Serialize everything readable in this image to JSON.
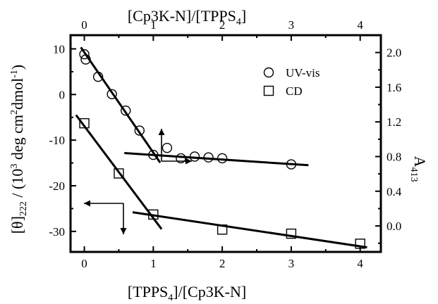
{
  "chart_data": {
    "type": "scatter",
    "x_bottom": {
      "label_parts": [
        "[TPPS",
        "4",
        "]/[Cp3K-N]"
      ],
      "range": [
        -0.2,
        4.3
      ],
      "ticks": [
        0,
        1,
        2,
        3,
        4
      ]
    },
    "x_top": {
      "label_parts": [
        "[Cp3K-N]/[TPPS",
        "4",
        "]"
      ],
      "ticks": [
        "0",
        "1",
        "2",
        "3",
        "4"
      ]
    },
    "y_left": {
      "label_parts": [
        "[θ]",
        "222",
        " / (10",
        "3",
        " deg cm",
        "2",
        "dmol",
        "-1",
        ")"
      ],
      "range": [
        -34.5,
        13
      ],
      "ticks": [
        10,
        0,
        -10,
        -20,
        -30
      ]
    },
    "y_right": {
      "label_parts": [
        "A",
        "413"
      ],
      "range": [
        -0.3,
        2.2
      ],
      "ticks": [
        "2.0",
        "1.6",
        "1.2",
        "0.8",
        "0.4",
        "0.0"
      ]
    },
    "legend": {
      "position": "top-right",
      "items": [
        {
          "name": "UV-vis",
          "marker": "circle"
        },
        {
          "name": "CD",
          "marker": "square"
        }
      ]
    },
    "series": [
      {
        "name": "UV-vis",
        "axis": "right",
        "marker": "circle",
        "x": [
          0,
          0.02,
          0.2,
          0.4,
          0.6,
          0.8,
          1.0,
          1.2,
          1.4,
          1.6,
          1.8,
          2.0,
          3.0
        ],
        "y": [
          1.98,
          1.92,
          1.72,
          1.52,
          1.33,
          1.1,
          0.82,
          0.9,
          0.78,
          0.8,
          0.79,
          0.78,
          0.71
        ]
      },
      {
        "name": "CD",
        "axis": "left",
        "marker": "square",
        "x": [
          0,
          0.5,
          1.0,
          2.0,
          3.0,
          4.0
        ],
        "y": [
          -6.3,
          -17.3,
          -26.3,
          -29.6,
          -30.5,
          -32.7
        ]
      }
    ],
    "fit_lines": [
      {
        "axis": "right",
        "x": [
          -0.05,
          1.1
        ],
        "y": [
          2.06,
          0.73
        ]
      },
      {
        "axis": "right",
        "x": [
          0.58,
          3.25
        ],
        "y": [
          0.84,
          0.7
        ]
      },
      {
        "axis": "left",
        "x": [
          -0.12,
          1.12
        ],
        "y": [
          -4.5,
          -29.5
        ]
      },
      {
        "axis": "left",
        "x": [
          0.7,
          4.1
        ],
        "y": [
          -25.8,
          -33.5
        ]
      }
    ],
    "grid": false
  }
}
